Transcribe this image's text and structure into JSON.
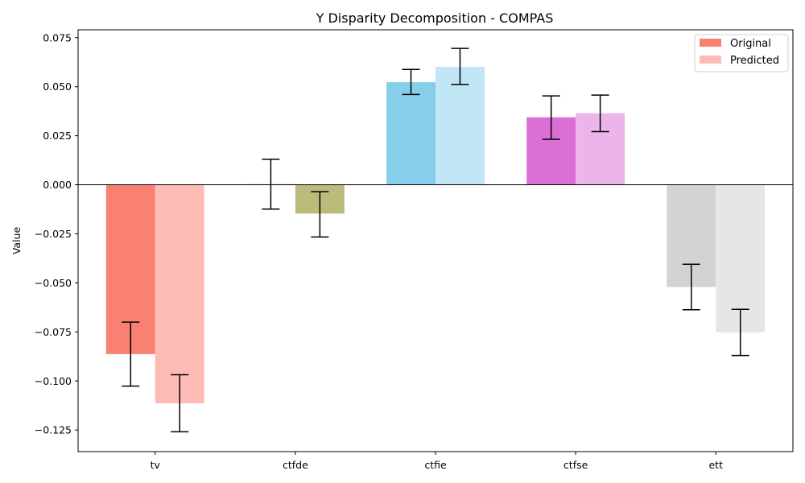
{
  "chart_data": {
    "type": "bar",
    "title": "Y Disparity Decomposition - COMPAS",
    "xlabel": "",
    "ylabel": "Value",
    "categories": [
      "tv",
      "ctfde",
      "ctfie",
      "ctfse",
      "ett"
    ],
    "ylim": [
      -0.136,
      0.079
    ],
    "yticks": [
      0.075,
      0.05,
      0.025,
      0.0,
      -0.025,
      -0.05,
      -0.075,
      -0.1,
      -0.125
    ],
    "ytick_labels": [
      "0.075",
      "0.050",
      "0.025",
      "0.000",
      "−0.025",
      "−0.050",
      "−0.075",
      "−0.100",
      "−0.125"
    ],
    "grid": false,
    "legend_position": "top-right",
    "zero_line": true,
    "series": [
      {
        "name": "Original",
        "legend_color": "#fa8072",
        "values": [
          -0.0863,
          0.0003,
          0.0523,
          0.0344,
          -0.0521
        ],
        "err_low": [
          -0.1026,
          -0.0124,
          0.046,
          0.0232,
          -0.0637
        ],
        "err_high": [
          -0.07,
          0.013,
          0.0588,
          0.0453,
          -0.0405
        ],
        "colors": [
          "#fa8072",
          "#bdb76b",
          "#87ceeb",
          "#da70d6",
          "#d3d3d3"
        ]
      },
      {
        "name": "Predicted",
        "legend_color": "#fdbbb5",
        "values": [
          -0.1114,
          -0.0147,
          0.0601,
          0.0365,
          -0.0752
        ],
        "err_low": [
          -0.1259,
          -0.0266,
          0.0511,
          0.0271,
          -0.087
        ],
        "err_high": [
          -0.0968,
          -0.0035,
          0.0695,
          0.0457,
          -0.0635
        ],
        "colors": [
          "#fdbbb5",
          "#bdbb7c",
          "#c1e6f5",
          "#ecb5ea",
          "#e6e6e6"
        ]
      }
    ]
  }
}
